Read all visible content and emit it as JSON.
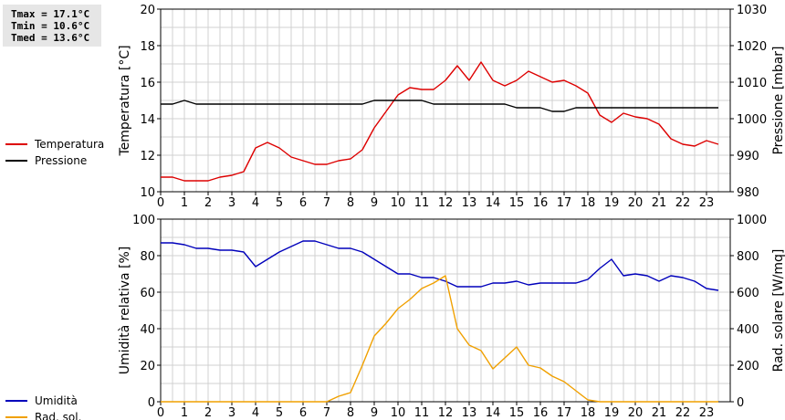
{
  "stats": {
    "tmax": "Tmax = 17.1°C",
    "tmin": "Tmin = 10.6°C",
    "tmed": "Tmed = 13.6°C"
  },
  "colors": {
    "temperature": "#dd0000",
    "pressure": "#000000",
    "humidity": "#0000bb",
    "solar": "#f0a000",
    "grid": "#d0d0d0"
  },
  "chart_data": [
    {
      "type": "line",
      "x_ticks": [
        "0",
        "1",
        "2",
        "3",
        "4",
        "5",
        "6",
        "7",
        "8",
        "9",
        "10",
        "11",
        "12",
        "13",
        "14",
        "15",
        "16",
        "17",
        "18",
        "19",
        "20",
        "21",
        "22",
        "23"
      ],
      "xlim": [
        0,
        24
      ],
      "ylabel_left": "Temperatura [°C]",
      "ylim_left": [
        10,
        20
      ],
      "yticks_left": [
        "10",
        "12",
        "14",
        "16",
        "18",
        "20"
      ],
      "ylabel_right": "Pressione [mbar]",
      "ylim_right": [
        980,
        1030
      ],
      "yticks_right": [
        "980",
        "990",
        "1000",
        "1010",
        "1020",
        "1030"
      ],
      "grid": true,
      "legend_position": "left",
      "series": [
        {
          "name": "Temperatura",
          "axis": "left",
          "x": [
            0,
            0.5,
            1,
            1.5,
            2,
            2.5,
            3,
            3.5,
            4,
            4.5,
            5,
            5.5,
            6,
            6.5,
            7,
            7.5,
            8,
            8.5,
            9,
            9.5,
            10,
            10.5,
            11,
            11.5,
            12,
            12.5,
            13,
            13.5,
            14,
            14.5,
            15,
            15.5,
            16,
            16.5,
            17,
            17.5,
            18,
            18.5,
            19,
            19.5,
            20,
            20.5,
            21,
            21.5,
            22,
            22.5,
            23,
            23.5
          ],
          "values": [
            10.8,
            10.8,
            10.6,
            10.6,
            10.6,
            10.8,
            10.9,
            11.1,
            12.4,
            12.7,
            12.4,
            11.9,
            11.7,
            11.5,
            11.5,
            11.7,
            11.8,
            12.3,
            13.5,
            14.4,
            15.3,
            15.7,
            15.6,
            15.6,
            16.1,
            16.9,
            16.1,
            17.1,
            16.1,
            15.8,
            16.1,
            16.6,
            16.3,
            16.0,
            16.1,
            15.8,
            15.4,
            14.2,
            13.8,
            14.3,
            14.1,
            14.0,
            13.7,
            12.9,
            12.6,
            12.5,
            12.8,
            12.6
          ]
        },
        {
          "name": "Pressione",
          "axis": "right",
          "x": [
            0,
            0.5,
            1,
            1.5,
            2,
            2.5,
            3,
            3.5,
            4,
            4.5,
            5,
            5.5,
            6,
            6.5,
            7,
            7.5,
            8,
            8.5,
            9,
            9.5,
            10,
            10.5,
            11,
            11.5,
            12,
            12.5,
            13,
            13.5,
            14,
            14.5,
            15,
            15.5,
            16,
            16.5,
            17,
            17.5,
            18,
            18.5,
            19,
            19.5,
            20,
            20.5,
            21,
            21.5,
            22,
            22.5,
            23,
            23.5
          ],
          "values": [
            1004,
            1004,
            1005,
            1004,
            1004,
            1004,
            1004,
            1004,
            1004,
            1004,
            1004,
            1004,
            1004,
            1004,
            1004,
            1004,
            1004,
            1004,
            1005,
            1005,
            1005,
            1005,
            1005,
            1004,
            1004,
            1004,
            1004,
            1004,
            1004,
            1004,
            1003,
            1003,
            1003,
            1002,
            1002,
            1003,
            1003,
            1003,
            1003,
            1003,
            1003,
            1003,
            1003,
            1003,
            1003,
            1003,
            1003,
            1003
          ]
        }
      ]
    },
    {
      "type": "line",
      "x_ticks": [
        "0",
        "1",
        "2",
        "3",
        "4",
        "5",
        "6",
        "7",
        "8",
        "9",
        "10",
        "11",
        "12",
        "13",
        "14",
        "15",
        "16",
        "17",
        "18",
        "19",
        "20",
        "21",
        "22",
        "23"
      ],
      "xlim": [
        0,
        24
      ],
      "ylabel_left": "Umidità relativa [%]",
      "ylim_left": [
        0,
        100
      ],
      "yticks_left": [
        "0",
        "20",
        "40",
        "60",
        "80",
        "100"
      ],
      "ylabel_right": "Rad. solare [W/mq]",
      "ylim_right": [
        0,
        1000
      ],
      "yticks_right": [
        "0",
        "200",
        "400",
        "600",
        "800",
        "1000"
      ],
      "grid": true,
      "legend_position": "left",
      "series": [
        {
          "name": "Umidità",
          "axis": "left",
          "x": [
            0,
            0.5,
            1,
            1.5,
            2,
            2.5,
            3,
            3.5,
            4,
            4.5,
            5,
            5.5,
            6,
            6.5,
            7,
            7.5,
            8,
            8.5,
            9,
            9.5,
            10,
            10.5,
            11,
            11.5,
            12,
            12.5,
            13,
            13.5,
            14,
            14.5,
            15,
            15.5,
            16,
            16.5,
            17,
            17.5,
            18,
            18.5,
            19,
            19.5,
            20,
            20.5,
            21,
            21.5,
            22,
            22.5,
            23,
            23.5
          ],
          "values": [
            87,
            87,
            86,
            84,
            84,
            83,
            83,
            82,
            74,
            78,
            82,
            85,
            88,
            88,
            86,
            84,
            84,
            82,
            78,
            74,
            70,
            70,
            68,
            68,
            66,
            63,
            63,
            63,
            65,
            65,
            66,
            64,
            65,
            65,
            65,
            65,
            67,
            73,
            78,
            69,
            70,
            69,
            66,
            69,
            68,
            66,
            62,
            61
          ]
        },
        {
          "name": "Rad. sol.",
          "axis": "right",
          "x": [
            0,
            0.5,
            1,
            1.5,
            2,
            2.5,
            3,
            3.5,
            4,
            4.5,
            5,
            5.5,
            6,
            6.5,
            7,
            7.5,
            8,
            8.5,
            9,
            9.5,
            10,
            10.5,
            11,
            11.5,
            12,
            12.5,
            13,
            13.5,
            14,
            14.5,
            15,
            15.5,
            16,
            16.5,
            17,
            17.5,
            18,
            18.5,
            19,
            19.5,
            20,
            20.5,
            21,
            21.5,
            22,
            22.5,
            23,
            23.5
          ],
          "values": [
            0,
            0,
            0,
            0,
            0,
            0,
            0,
            0,
            0,
            0,
            0,
            0,
            0,
            0,
            0,
            30,
            50,
            200,
            360,
            430,
            510,
            560,
            620,
            650,
            690,
            400,
            310,
            280,
            180,
            240,
            300,
            200,
            185,
            140,
            110,
            60,
            10,
            0,
            0,
            0,
            0,
            0,
            0,
            0,
            0,
            0,
            0,
            0
          ]
        }
      ]
    }
  ]
}
